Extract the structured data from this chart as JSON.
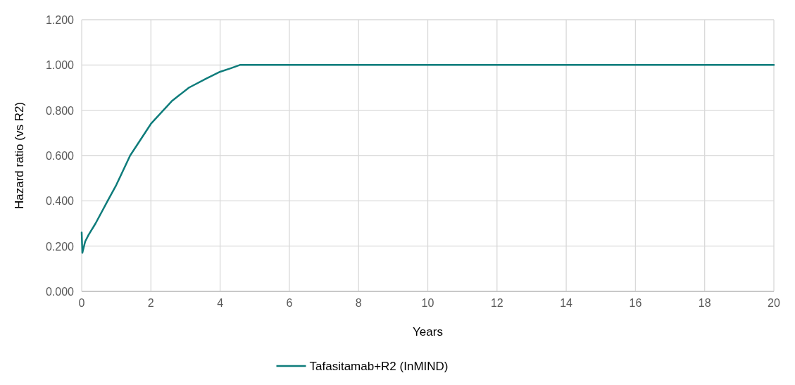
{
  "chart_data": {
    "type": "line",
    "xlabel": "Years",
    "ylabel": "Hazard ratio (vs R2)",
    "xlim": [
      0,
      20
    ],
    "xticks": [
      0,
      2,
      4,
      6,
      8,
      10,
      12,
      14,
      16,
      18,
      20
    ],
    "ylim": [
      0,
      1.2
    ],
    "yticks": [
      {
        "value": 0,
        "label": "0.000"
      },
      {
        "value": 0.2,
        "label": "0.200"
      },
      {
        "value": 0.4,
        "label": "0.400"
      },
      {
        "value": 0.6,
        "label": "0.600"
      },
      {
        "value": 0.8,
        "label": "0.800"
      },
      {
        "value": 1,
        "label": "1.000"
      },
      {
        "value": 1.2,
        "label": "1.200"
      }
    ],
    "grid": true,
    "legend": "bottom",
    "marker": "none",
    "line_style": "solid",
    "series": [
      {
        "name": "Tafasitamab+R2 (InMIND)",
        "color": "#0e7c7b",
        "x": [
          0,
          0.02,
          0.1,
          0.2,
          0.4,
          0.75,
          1.0,
          1.4,
          1.7,
          2.0,
          2.3,
          2.6,
          3.1,
          3.6,
          4.0,
          4.3,
          4.57,
          6,
          10,
          15,
          20
        ],
        "values": [
          0.26,
          0.17,
          0.22,
          0.25,
          0.3,
          0.4,
          0.47,
          0.6,
          0.67,
          0.74,
          0.79,
          0.84,
          0.9,
          0.94,
          0.97,
          0.985,
          1.0,
          1.0,
          1.0,
          1.0,
          1.0
        ]
      }
    ]
  }
}
